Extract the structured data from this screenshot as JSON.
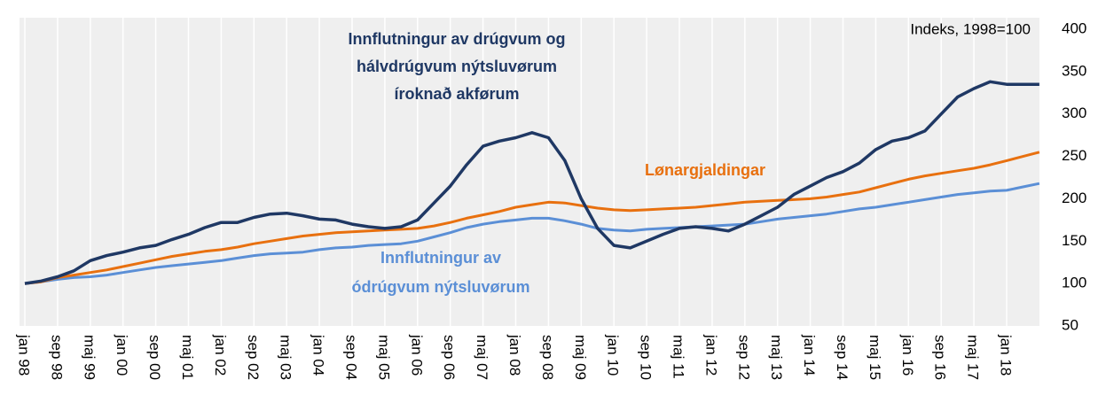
{
  "chart_data": {
    "type": "line",
    "note": "Indeks, 1998=100",
    "categories": [
      "jan 98",
      null,
      "sep 98",
      null,
      "maj 99",
      null,
      "jan 00",
      null,
      "sep 00",
      null,
      "maj 01",
      null,
      "jan 02",
      null,
      "sep 02",
      null,
      "maj 03",
      null,
      "jan 04",
      null,
      "sep 04",
      null,
      "maj 05",
      null,
      "jan 06",
      null,
      "sep 06",
      null,
      "maj 07",
      null,
      "jan 08",
      null,
      "sep 08",
      null,
      "maj 09",
      null,
      "jan 10",
      null,
      "sep 10",
      null,
      "maj 11",
      null,
      "jan 12",
      null,
      "sep 12",
      null,
      "maj 13",
      null,
      "jan 14",
      null,
      "sep 14",
      null,
      "maj 15",
      null,
      "jan 16",
      null,
      "sep 16",
      null,
      "maj 17",
      null,
      "jan 18",
      null,
      null
    ],
    "series": [
      {
        "name": [
          "Innflutningur av drúgvum og",
          "hálvdrúgvum nýtsluvørum",
          "íroknað akførum"
        ],
        "color": "#1f3864",
        "values": [
          100,
          103,
          108,
          115,
          127,
          133,
          137,
          142,
          145,
          152,
          158,
          166,
          172,
          172,
          178,
          182,
          183,
          180,
          176,
          175,
          170,
          167,
          165,
          167,
          175,
          195,
          215,
          240,
          262,
          268,
          272,
          278,
          272,
          245,
          200,
          165,
          145,
          142,
          150,
          158,
          165,
          167,
          165,
          162,
          170,
          180,
          190,
          205,
          215,
          225,
          232,
          242,
          258,
          268,
          272,
          280,
          300,
          320,
          330,
          338,
          335,
          335,
          335
        ]
      },
      {
        "name": [
          "Lønargjaldingar"
        ],
        "color": "#e8700f",
        "values": [
          100,
          102,
          107,
          110,
          113,
          116,
          120,
          124,
          128,
          132,
          135,
          138,
          140,
          143,
          147,
          150,
          153,
          156,
          158,
          160,
          161,
          162,
          163,
          164,
          165,
          168,
          172,
          177,
          181,
          185,
          190,
          193,
          196,
          195,
          192,
          189,
          187,
          186,
          187,
          188,
          189,
          190,
          192,
          194,
          196,
          197,
          198,
          199,
          200,
          202,
          205,
          208,
          213,
          218,
          223,
          227,
          230,
          233,
          236,
          240,
          245,
          250,
          255
        ]
      },
      {
        "name": [
          "Innflutningur av",
          "ódrúgvum nýtsluvørum"
        ],
        "color": "#5b8fd6",
        "values": [
          100,
          102,
          105,
          107,
          108,
          110,
          113,
          116,
          119,
          121,
          123,
          125,
          127,
          130,
          133,
          135,
          136,
          137,
          140,
          142,
          143,
          145,
          146,
          147,
          150,
          155,
          160,
          166,
          170,
          173,
          175,
          177,
          177,
          174,
          170,
          165,
          163,
          162,
          164,
          165,
          166,
          167,
          168,
          169,
          170,
          173,
          176,
          178,
          180,
          182,
          185,
          188,
          190,
          193,
          196,
          199,
          202,
          205,
          207,
          209,
          210,
          214,
          218
        ]
      }
    ],
    "ylim": [
      50,
      400
    ],
    "yticks": [
      50,
      100,
      150,
      200,
      250,
      300,
      350,
      400
    ],
    "y_axis_side": "right",
    "grid": false
  }
}
